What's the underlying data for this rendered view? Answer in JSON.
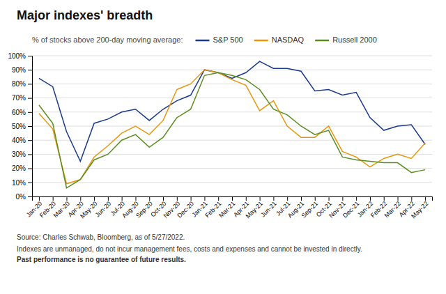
{
  "chart_data": {
    "type": "line",
    "title": "Major indexes' breadth",
    "subtitle": "% of stocks above 200-day moving average:",
    "source": "Source: Charles Schwab, Bloomberg, as of 5/27/2022.",
    "annotations": [
      "Indexes are unmanaged, do not incur management fees, costs and expenses and cannot be invested in directly.",
      "Past performance is no guarantee of future results."
    ],
    "categories": [
      "Jan-20",
      "Feb-20",
      "Mar-20",
      "Apr-20",
      "May-20",
      "Jun-20",
      "Jul-20",
      "Aug-20",
      "Sep-20",
      "Oct-20",
      "Nov-20",
      "Dec-20",
      "Jan-21",
      "Feb-21",
      "Mar-21",
      "Apr-21",
      "May-21",
      "Jun-21",
      "Jul-21",
      "Aug-21",
      "Sep-21",
      "Oct-21",
      "Nov-21",
      "Dec-21",
      "Jan-22",
      "Feb-22",
      "Mar-22",
      "Apr-22",
      "May-22"
    ],
    "series": [
      {
        "name": "S&P 500",
        "color": "#1a3a8a",
        "values": [
          84,
          78,
          46,
          25,
          52,
          55,
          60,
          62,
          54,
          62,
          68,
          72,
          90,
          88,
          84,
          88,
          96,
          91,
          91,
          89,
          75,
          76,
          72,
          74,
          56,
          47,
          50,
          51,
          37
        ]
      },
      {
        "name": "NASDAQ",
        "color": "#e8950e",
        "values": [
          59,
          48,
          9,
          12,
          28,
          36,
          45,
          50,
          44,
          54,
          76,
          80,
          90,
          88,
          83,
          79,
          61,
          68,
          50,
          42,
          42,
          50,
          32,
          28,
          21,
          27,
          30,
          27,
          38
        ]
      },
      {
        "name": "Russell 2000",
        "color": "#5a8c1e",
        "values": [
          65,
          52,
          6,
          12,
          26,
          30,
          40,
          44,
          35,
          42,
          56,
          62,
          86,
          88,
          86,
          83,
          76,
          62,
          58,
          50,
          44,
          47,
          28,
          26,
          25,
          24,
          24,
          17,
          19
        ]
      }
    ],
    "ylim": [
      0,
      100
    ],
    "yticks": [
      {
        "value": 0,
        "label": "0%"
      },
      {
        "value": 10,
        "label": "10%"
      },
      {
        "value": 20,
        "label": "20%"
      },
      {
        "value": 30,
        "label": "30%"
      },
      {
        "value": 40,
        "label": "40%"
      },
      {
        "value": 50,
        "label": "50%"
      },
      {
        "value": 60,
        "label": "60%"
      },
      {
        "value": 70,
        "label": "70%"
      },
      {
        "value": 80,
        "label": "80%"
      },
      {
        "value": 90,
        "label": "90%"
      },
      {
        "value": 100,
        "label": "100%"
      }
    ],
    "grid": true,
    "legend": "top"
  }
}
